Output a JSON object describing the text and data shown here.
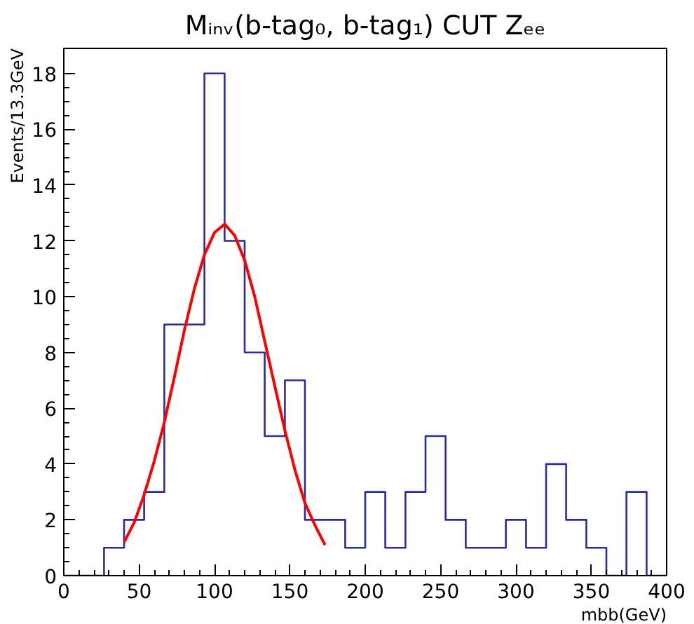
{
  "chart_data": {
    "type": "histogram",
    "title": "Mᵢₙᵥ(b-tag₀, b-tag₁) CUT Zₑₑ",
    "xlabel": "mbb(GeV)",
    "ylabel": "Events/13.3GeV",
    "series": [
      {
        "type": "histogram",
        "color": "#2b2ba0",
        "bins": [
          0,
          13.3,
          26.7,
          40,
          53.3,
          66.7,
          80,
          93.3,
          106.7,
          120,
          133.3,
          146.7,
          160,
          173.3,
          186.7,
          200,
          213.3,
          226.7,
          240,
          253.3,
          266.7,
          280,
          293.3,
          306.7,
          320,
          333.3,
          346.7,
          360,
          373.3,
          386.7,
          400
        ],
        "values": [
          0,
          0,
          1,
          2,
          3,
          9,
          9,
          18,
          12,
          8,
          5,
          7,
          2,
          2,
          1,
          3,
          1,
          3,
          5,
          2,
          1,
          1,
          2,
          1,
          4,
          2,
          1,
          0,
          3,
          0
        ]
      },
      {
        "type": "line",
        "color": "#ff0000",
        "x": [
          40,
          46.7,
          53.3,
          60,
          66.7,
          73.3,
          80,
          86.7,
          93.3,
          100,
          106.7,
          113.3,
          120,
          126.7,
          133.3,
          140,
          146.7,
          153.3,
          160,
          166.7,
          173.3
        ],
        "values": [
          1.2,
          1.9,
          2.9,
          4.1,
          5.5,
          7.1,
          8.8,
          10.3,
          11.5,
          12.3,
          12.6,
          12.2,
          11.3,
          10.0,
          8.4,
          6.8,
          5.2,
          3.8,
          2.6,
          1.8,
          1.1
        ]
      }
    ],
    "xlim": [
      0,
      400
    ],
    "xticks": [
      0,
      50,
      100,
      150,
      200,
      250,
      300,
      350,
      400
    ],
    "ylim": [
      0,
      18.9
    ],
    "yticks": [
      0,
      2,
      4,
      6,
      8,
      10,
      12,
      14,
      16,
      18
    ],
    "grid": false
  }
}
